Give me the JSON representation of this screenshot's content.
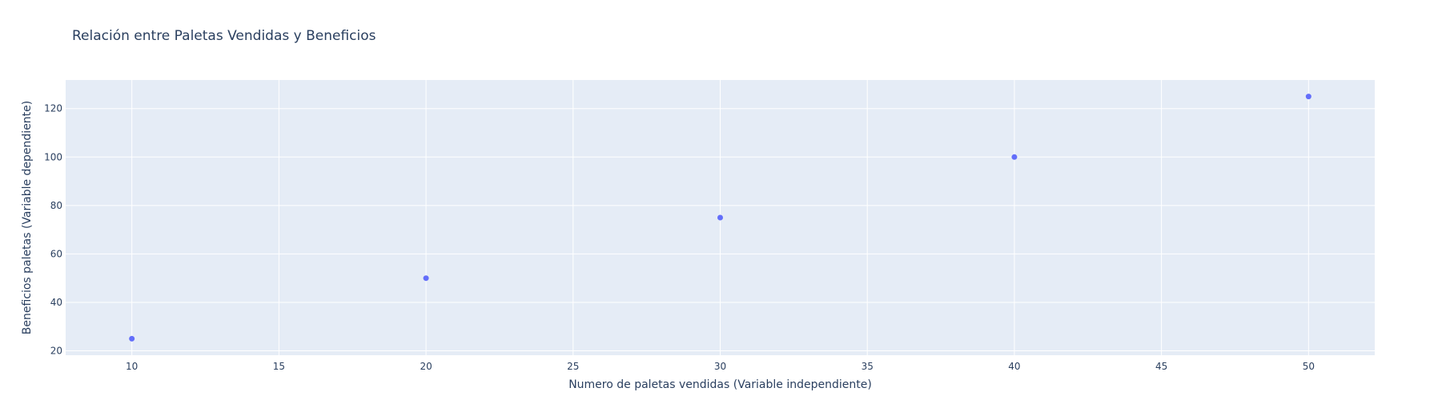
{
  "chart_data": {
    "type": "scatter",
    "title": "Relación entre Paletas Vendidas y Beneficios",
    "xlabel": "Numero de paletas vendidas (Variable independiente)",
    "ylabel": "Beneficios paletas (Variable dependiente)",
    "x": [
      10,
      20,
      30,
      40,
      50
    ],
    "y": [
      25,
      50,
      75,
      100,
      125
    ],
    "xlim": [
      7.75,
      52.25
    ],
    "ylim": [
      18.2,
      131.8
    ],
    "x_ticks": [
      10,
      15,
      20,
      25,
      30,
      35,
      40,
      45,
      50
    ],
    "y_ticks": [
      20,
      40,
      60,
      80,
      100,
      120
    ],
    "grid": true,
    "colors": {
      "plot_background": "#E5ECF6",
      "marker": "#636EFA",
      "grid": "#FFFFFF",
      "text": "#2A3F5F"
    }
  }
}
